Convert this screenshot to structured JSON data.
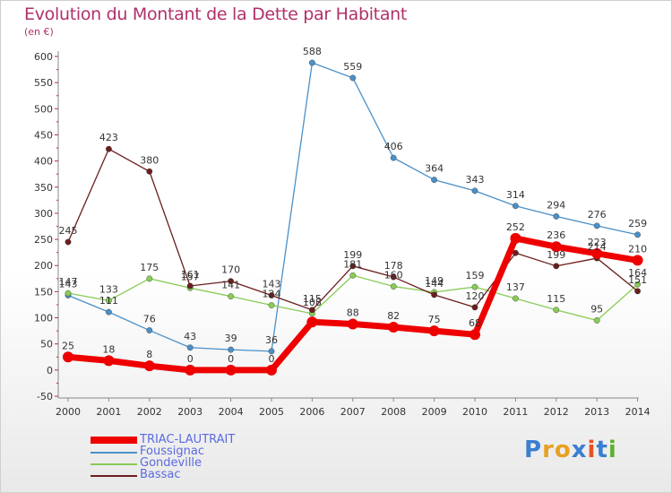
{
  "title": "Evolution du Montant de la Dette par Habitant",
  "unit_label": "(en €)",
  "logo": {
    "letters": [
      "P",
      "r",
      "o",
      "x",
      "i",
      "t",
      "i"
    ],
    "colors": [
      "#3a7fd0",
      "#e8a020",
      "#e8a020",
      "#3a7fd0",
      "#e85020",
      "#3a7fd0",
      "#60b030"
    ]
  },
  "chart_data": {
    "type": "line",
    "title": "Evolution du Montant de la Dette par Habitant",
    "ylabel": "(en €)",
    "xlabel": "",
    "x": [
      "2000",
      "2001",
      "2002",
      "2003",
      "2004",
      "2005",
      "2006",
      "2007",
      "2008",
      "2009",
      "2010",
      "2011",
      "2012",
      "2013",
      "2014"
    ],
    "ylim": [
      -50,
      600
    ],
    "yticks": [
      "-50",
      "0",
      "50",
      "100",
      "150",
      "200",
      "250",
      "300",
      "350",
      "400",
      "450",
      "500",
      "550",
      "600"
    ],
    "grid": false,
    "legend_position": "bottom-left",
    "series": [
      {
        "name": "TRIAC-LAUTRAIT",
        "color": "#ee0000",
        "values": [
          25,
          18,
          8,
          0,
          0,
          0,
          92,
          88,
          82,
          75,
          68,
          252,
          236,
          223,
          210
        ],
        "labels": [
          "25",
          "18",
          "8",
          "0",
          "0",
          "0",
          "",
          "88",
          "82",
          "75",
          "68",
          "252",
          "236",
          "223",
          "210"
        ]
      },
      {
        "name": "Foussignac",
        "color": "#4a90c8",
        "values": [
          143,
          111,
          76,
          43,
          39,
          36,
          588,
          559,
          406,
          364,
          343,
          314,
          294,
          276,
          259
        ],
        "labels": [
          "143",
          "111",
          "76",
          "43",
          "39",
          "36",
          "588",
          "559",
          "406",
          "364",
          "343",
          "314",
          "294",
          "276",
          "259"
        ]
      },
      {
        "name": "Gondeville",
        "color": "#88cc55",
        "values": [
          147,
          133,
          175,
          157,
          141,
          124,
          108,
          181,
          160,
          149,
          159,
          137,
          115,
          95,
          164
        ],
        "labels": [
          "147",
          "133",
          "175",
          "157",
          "141",
          "124",
          "108",
          "181",
          "160",
          "149",
          "159",
          "137",
          "115",
          "95",
          "164"
        ]
      },
      {
        "name": "Bassac",
        "color": "#6b1e1e",
        "values": [
          245,
          423,
          380,
          161,
          170,
          143,
          115,
          199,
          178,
          144,
          120,
          224,
          199,
          214,
          151
        ],
        "labels": [
          "245",
          "423",
          "380",
          "161",
          "170",
          "143",
          "115",
          "199",
          "178",
          "144",
          "120",
          "",
          "199",
          "214",
          "151"
        ]
      }
    ]
  }
}
